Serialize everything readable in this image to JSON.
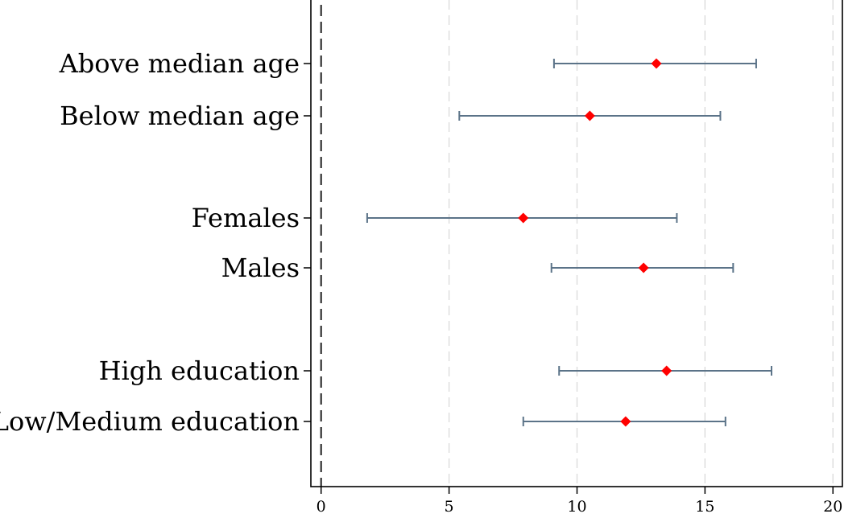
{
  "chart_data": {
    "type": "coefficient_plot",
    "title": "",
    "xlabel": "",
    "ylabel": "",
    "xlim": [
      -0.4,
      20.4
    ],
    "xticks": [
      0,
      5,
      10,
      15,
      20
    ],
    "xtick_labels": [
      "0",
      "5",
      "10",
      "15",
      "20"
    ],
    "reference_line": {
      "x": 0,
      "style": "dashed",
      "color": "#333333"
    },
    "grid": {
      "vertical": true,
      "style": "dashed",
      "color": "#d9d9d9"
    },
    "point_color": "#ff0000",
    "ci_color": "#5b7388",
    "items": [
      {
        "label": "Above median age",
        "estimate": 13.1,
        "ci_low": 9.1,
        "ci_high": 17.0,
        "group": "age"
      },
      {
        "label": "Below median age",
        "estimate": 10.5,
        "ci_low": 5.4,
        "ci_high": 15.6,
        "group": "age"
      },
      {
        "label": "Females",
        "estimate": 7.9,
        "ci_low": 1.8,
        "ci_high": 13.9,
        "group": "gender"
      },
      {
        "label": "Males",
        "estimate": 12.6,
        "ci_low": 9.0,
        "ci_high": 16.1,
        "group": "gender"
      },
      {
        "label": "High education",
        "estimate": 13.5,
        "ci_low": 9.3,
        "ci_high": 17.6,
        "group": "education"
      },
      {
        "label": "Low/Medium education",
        "estimate": 11.9,
        "ci_low": 7.9,
        "ci_high": 15.8,
        "group": "education"
      }
    ]
  }
}
